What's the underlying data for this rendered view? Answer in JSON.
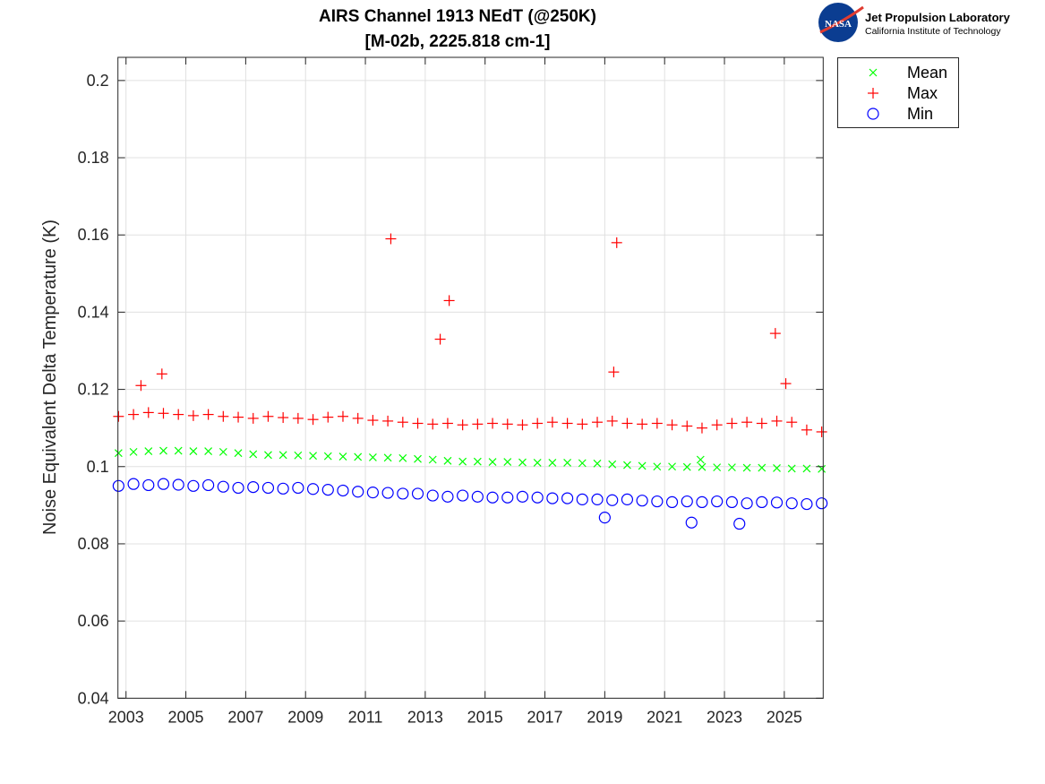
{
  "logo": {
    "name": "Jet Propulsion Laboratory",
    "subtitle": "California Institute of Technology",
    "badge": "NASA"
  },
  "chart_data": {
    "type": "scatter",
    "title": [
      "AIRS Channel 1913 NEdT (@250K)",
      "[M-02b, 2225.818 cm-1]"
    ],
    "xlabel": "",
    "ylabel": "Noise Equivalent Delta Temperature (K)",
    "xlim": [
      2002.73,
      2026.3
    ],
    "ylim": [
      0.04,
      0.206
    ],
    "xticks": [
      2003,
      2005,
      2007,
      2009,
      2011,
      2013,
      2015,
      2017,
      2019,
      2021,
      2023,
      2025
    ],
    "xticklabels": [
      "2003",
      "2005",
      "2007",
      "2009",
      "2011",
      "2013",
      "2015",
      "2017",
      "2019",
      "2021",
      "2023",
      "2025"
    ],
    "yticks": [
      0.04,
      0.06,
      0.08,
      0.1,
      0.12,
      0.14,
      0.16,
      0.18,
      0.2
    ],
    "yticklabels": [
      "0.04",
      "0.06",
      "0.08",
      "0.1",
      "0.12",
      "0.14",
      "0.16",
      "0.18",
      "0.2"
    ],
    "grid": true,
    "legend_position": "outside-top-right",
    "x": [
      2002.75,
      2003.25,
      2003.75,
      2004.25,
      2004.75,
      2005.25,
      2005.75,
      2006.25,
      2006.75,
      2007.25,
      2007.75,
      2008.25,
      2008.75,
      2009.25,
      2009.75,
      2010.25,
      2010.75,
      2011.25,
      2011.75,
      2012.25,
      2012.75,
      2013.25,
      2013.75,
      2014.25,
      2014.75,
      2015.25,
      2015.75,
      2016.25,
      2016.75,
      2017.25,
      2017.75,
      2018.25,
      2018.75,
      2019.25,
      2019.75,
      2020.25,
      2020.75,
      2021.25,
      2021.75,
      2022.25,
      2022.75,
      2023.25,
      2023.75,
      2024.25,
      2024.75,
      2025.25,
      2025.75,
      2026.25
    ],
    "series": [
      {
        "name": "Mean",
        "marker": "x",
        "color": "#00ff00",
        "values": [
          0.1035,
          0.1038,
          0.104,
          0.1041,
          0.1041,
          0.104,
          0.104,
          0.1038,
          0.1035,
          0.1032,
          0.103,
          0.103,
          0.1029,
          0.1028,
          0.1027,
          0.1026,
          0.1025,
          0.1024,
          0.1023,
          0.1022,
          0.102,
          0.1018,
          0.1015,
          0.1013,
          0.1013,
          0.1012,
          0.1012,
          0.1011,
          0.101,
          0.101,
          0.101,
          0.1009,
          0.1008,
          0.1006,
          0.1004,
          0.1002,
          0.1,
          0.1,
          0.0999,
          0.0999,
          0.0998,
          0.0998,
          0.0997,
          0.0997,
          0.0996,
          0.0995,
          0.0995,
          0.0994
        ],
        "extra_points": [
          [
            2022.2,
            0.1018
          ]
        ]
      },
      {
        "name": "Max",
        "marker": "+",
        "color": "#ff0000",
        "values": [
          0.113,
          0.1135,
          0.114,
          0.1138,
          0.1135,
          0.1132,
          0.1135,
          0.113,
          0.1128,
          0.1125,
          0.113,
          0.1127,
          0.1125,
          0.1122,
          0.1128,
          0.113,
          0.1125,
          0.112,
          0.1118,
          0.1115,
          0.1112,
          0.111,
          0.1112,
          0.1108,
          0.111,
          0.1112,
          0.111,
          0.1108,
          0.1112,
          0.1115,
          0.1112,
          0.111,
          0.1115,
          0.1118,
          0.1112,
          0.111,
          0.1112,
          0.1108,
          0.1105,
          0.11,
          0.1108,
          0.1112,
          0.1115,
          0.1112,
          0.1118,
          0.1115,
          0.1095,
          0.109
        ],
        "extra_points": [
          [
            2003.5,
            0.121
          ],
          [
            2004.2,
            0.124
          ],
          [
            2011.85,
            0.159
          ],
          [
            2013.5,
            0.133
          ],
          [
            2013.8,
            0.143
          ],
          [
            2019.3,
            0.1245
          ],
          [
            2019.4,
            0.158
          ],
          [
            2024.7,
            0.1345
          ],
          [
            2025.05,
            0.1215
          ]
        ]
      },
      {
        "name": "Min",
        "marker": "o",
        "color": "#0000ff",
        "values": [
          0.095,
          0.0955,
          0.0952,
          0.0955,
          0.0953,
          0.095,
          0.0952,
          0.0948,
          0.0945,
          0.0947,
          0.0945,
          0.0943,
          0.0945,
          0.0942,
          0.094,
          0.0938,
          0.0935,
          0.0933,
          0.0932,
          0.093,
          0.093,
          0.0925,
          0.0922,
          0.0925,
          0.0922,
          0.092,
          0.092,
          0.0922,
          0.092,
          0.0918,
          0.0918,
          0.0915,
          0.0915,
          0.0913,
          0.0915,
          0.0912,
          0.091,
          0.0908,
          0.091,
          0.0908,
          0.091,
          0.0908,
          0.0905,
          0.0908,
          0.0907,
          0.0905,
          0.0903,
          0.0905
        ],
        "extra_points": [
          [
            2021.9,
            0.0855
          ],
          [
            2023.5,
            0.0852
          ],
          [
            2019.0,
            0.0868
          ]
        ]
      }
    ]
  }
}
